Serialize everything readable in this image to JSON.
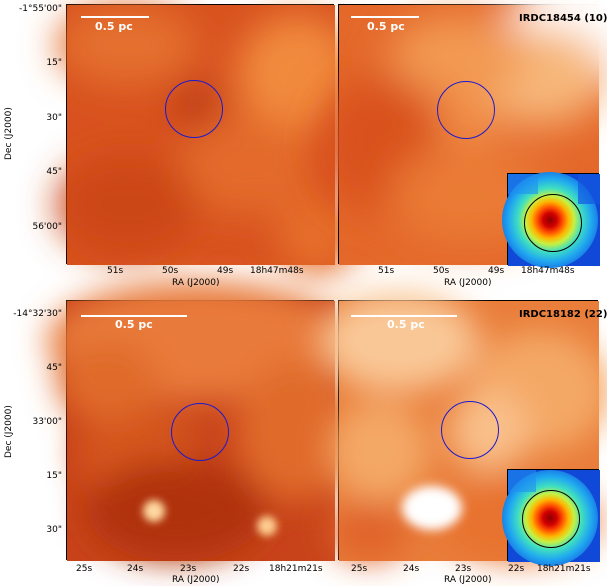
{
  "top_left": {
    "scale_label": "0.5 pc",
    "y_ticks": [
      "-1°55'00\"",
      "15\"",
      "30\"",
      "45\"",
      "56'00\""
    ],
    "x_ticks": [
      "51s",
      "50s",
      "49s",
      "18h47m48s"
    ],
    "xlabel": "RA (J2000)",
    "ylabel": "Dec (J2000)"
  },
  "top_right": {
    "scale_label": "0.5 pc",
    "source": "IRDC18454 (10)",
    "x_ticks": [
      "51s",
      "50s",
      "49s",
      "18h47m48s"
    ],
    "xlabel": "RA (J2000)"
  },
  "bottom_left": {
    "scale_label": "0.5 pc",
    "y_ticks": [
      "-14°32'30\"",
      "45\"",
      "33'00\"",
      "15\"",
      "30\""
    ],
    "x_ticks": [
      "25s",
      "24s",
      "23s",
      "22s",
      "18h21m21s"
    ],
    "xlabel": "RA (J2000)",
    "ylabel": "Dec (J2000)"
  },
  "bottom_right": {
    "scale_label": "0.5 pc",
    "source": "IRDC18182 (22)",
    "x_ticks": [
      "25s",
      "24s",
      "23s",
      "22s",
      "18h21m21s"
    ],
    "xlabel": "RA (J2000)"
  }
}
